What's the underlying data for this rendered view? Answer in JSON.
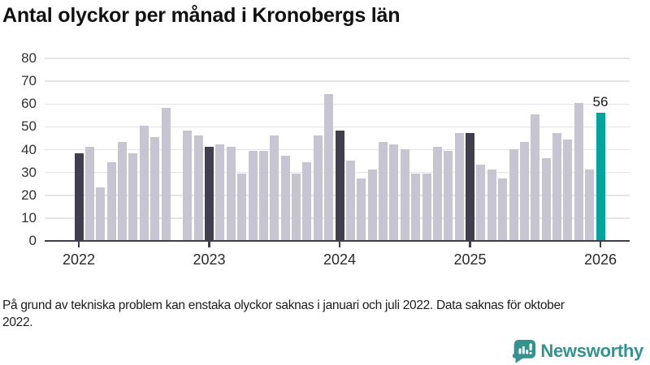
{
  "footnote": "På grund av tekniska problem kan enstaka olyckor saknas i januari och juli 2022. Data saknas för oktober 2022.",
  "logo_text": "Newsworthy",
  "colors": {
    "bar_default": "#c7c5d1",
    "bar_january": "#413e4e",
    "bar_latest": "#00a49c",
    "gridline": "#e4e4e7",
    "axis": "#3f3d49",
    "logo_teal": "#34928f"
  },
  "chart_data": {
    "type": "bar",
    "title": "Antal olyckor per månad i Kronobergs län",
    "xlabel": "",
    "ylabel": "",
    "ylim": [
      0,
      80
    ],
    "y_ticks": [
      0,
      10,
      20,
      30,
      40,
      50,
      60,
      70,
      80
    ],
    "x_tick_labels": [
      "2022",
      "2023",
      "2024",
      "2025",
      "2026"
    ],
    "grid": true,
    "legend": "none",
    "missing_months": [
      "2022-10"
    ],
    "annotation": {
      "text": "56",
      "month": "2026-01"
    },
    "series": [
      {
        "name": "Antal olyckor",
        "points": [
          {
            "month": "2022-01",
            "value": 38,
            "style": "january"
          },
          {
            "month": "2022-02",
            "value": 41,
            "style": "default"
          },
          {
            "month": "2022-03",
            "value": 23,
            "style": "default"
          },
          {
            "month": "2022-04",
            "value": 34,
            "style": "default"
          },
          {
            "month": "2022-05",
            "value": 43,
            "style": "default"
          },
          {
            "month": "2022-06",
            "value": 38,
            "style": "default"
          },
          {
            "month": "2022-07",
            "value": 50,
            "style": "default"
          },
          {
            "month": "2022-08",
            "value": 45,
            "style": "default"
          },
          {
            "month": "2022-09",
            "value": 58,
            "style": "default"
          },
          {
            "month": "2022-10",
            "value": null,
            "style": "missing"
          },
          {
            "month": "2022-11",
            "value": 48,
            "style": "default"
          },
          {
            "month": "2022-12",
            "value": 46,
            "style": "default"
          },
          {
            "month": "2023-01",
            "value": 41,
            "style": "january"
          },
          {
            "month": "2023-02",
            "value": 42,
            "style": "default"
          },
          {
            "month": "2023-03",
            "value": 41,
            "style": "default"
          },
          {
            "month": "2023-04",
            "value": 29,
            "style": "default"
          },
          {
            "month": "2023-05",
            "value": 39,
            "style": "default"
          },
          {
            "month": "2023-06",
            "value": 39,
            "style": "default"
          },
          {
            "month": "2023-07",
            "value": 46,
            "style": "default"
          },
          {
            "month": "2023-08",
            "value": 37,
            "style": "default"
          },
          {
            "month": "2023-09",
            "value": 29,
            "style": "default"
          },
          {
            "month": "2023-10",
            "value": 34,
            "style": "default"
          },
          {
            "month": "2023-11",
            "value": 46,
            "style": "default"
          },
          {
            "month": "2023-12",
            "value": 64,
            "style": "default"
          },
          {
            "month": "2024-01",
            "value": 48,
            "style": "january"
          },
          {
            "month": "2024-02",
            "value": 35,
            "style": "default"
          },
          {
            "month": "2024-03",
            "value": 27,
            "style": "default"
          },
          {
            "month": "2024-04",
            "value": 31,
            "style": "default"
          },
          {
            "month": "2024-05",
            "value": 43,
            "style": "default"
          },
          {
            "month": "2024-06",
            "value": 42,
            "style": "default"
          },
          {
            "month": "2024-07",
            "value": 40,
            "style": "default"
          },
          {
            "month": "2024-08",
            "value": 29,
            "style": "default"
          },
          {
            "month": "2024-09",
            "value": 29,
            "style": "default"
          },
          {
            "month": "2024-10",
            "value": 41,
            "style": "default"
          },
          {
            "month": "2024-11",
            "value": 39,
            "style": "default"
          },
          {
            "month": "2024-12",
            "value": 47,
            "style": "default"
          },
          {
            "month": "2025-01",
            "value": 47,
            "style": "january"
          },
          {
            "month": "2025-02",
            "value": 33,
            "style": "default"
          },
          {
            "month": "2025-03",
            "value": 31,
            "style": "default"
          },
          {
            "month": "2025-04",
            "value": 27,
            "style": "default"
          },
          {
            "month": "2025-05",
            "value": 40,
            "style": "default"
          },
          {
            "month": "2025-06",
            "value": 43,
            "style": "default"
          },
          {
            "month": "2025-07",
            "value": 55,
            "style": "default"
          },
          {
            "month": "2025-08",
            "value": 36,
            "style": "default"
          },
          {
            "month": "2025-09",
            "value": 47,
            "style": "default"
          },
          {
            "month": "2025-10",
            "value": 44,
            "style": "default"
          },
          {
            "month": "2025-11",
            "value": 60,
            "style": "default"
          },
          {
            "month": "2025-12",
            "value": 31,
            "style": "default"
          },
          {
            "month": "2026-01",
            "value": 56,
            "style": "latest"
          }
        ]
      }
    ]
  }
}
